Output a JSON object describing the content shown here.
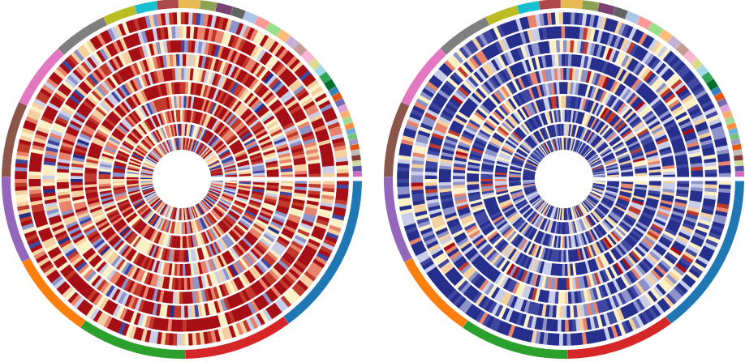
{
  "chart_data": [
    {
      "type": "heatmap",
      "layout": "circular",
      "title": "",
      "rings": 10,
      "colormap": [
        "#a50f15",
        "#c0392b",
        "#e7836b",
        "#f4cfa0",
        "#fcf0c6",
        "#c9cde8",
        "#8d92c8",
        "#3f47a0",
        "#262f8c"
      ],
      "dominant_color": "#a50f15",
      "ring_bias": [
        0.25,
        0.15,
        0.3,
        0.2,
        0.35,
        0.15,
        0.3,
        0.2,
        0.35,
        0.4
      ],
      "cells_per_ring": [
        260,
        250,
        240,
        230,
        220,
        210,
        200,
        190,
        180,
        200
      ]
    },
    {
      "type": "heatmap",
      "layout": "circular",
      "title": "",
      "rings": 10,
      "colormap": [
        "#a50f15",
        "#c0392b",
        "#e7836b",
        "#f4cfa0",
        "#fcf0c6",
        "#c9cde8",
        "#8d92c8",
        "#3f47a0",
        "#262f8c"
      ],
      "dominant_color": "#262f8c",
      "ring_bias": [
        0.8,
        0.75,
        0.7,
        0.85,
        0.65,
        0.8,
        0.7,
        0.75,
        0.8,
        0.85
      ],
      "cells_per_ring": [
        260,
        250,
        240,
        230,
        220,
        210,
        200,
        190,
        180,
        200
      ]
    }
  ],
  "categories": [
    {
      "color": "#1f77b4",
      "fraction": 0.15
    },
    {
      "color": "#d62728",
      "fraction": 0.1
    },
    {
      "color": "#2ca02c",
      "fraction": 0.1
    },
    {
      "color": "#ff7f0e",
      "fraction": 0.08
    },
    {
      "color": "#9467bd",
      "fraction": 0.08
    },
    {
      "color": "#8c564b",
      "fraction": 0.07
    },
    {
      "color": "#e377c2",
      "fraction": 0.06
    },
    {
      "color": "#7f7f7f",
      "fraction": 0.05
    },
    {
      "color": "#bcbd22",
      "fraction": 0.03
    },
    {
      "color": "#17becf",
      "fraction": 0.02
    },
    {
      "color": "#ad494a",
      "fraction": 0.02
    },
    {
      "color": "#e7ba52",
      "fraction": 0.02
    },
    {
      "color": "#8ca252",
      "fraction": 0.015
    },
    {
      "color": "#7b4173",
      "fraction": 0.015
    },
    {
      "color": "#636363",
      "fraction": 0.012
    },
    {
      "color": "#aec7e8",
      "fraction": 0.012
    },
    {
      "color": "#ff9896",
      "fraction": 0.012
    },
    {
      "color": "#98df8a",
      "fraction": 0.012
    },
    {
      "color": "#ffbb78",
      "fraction": 0.01
    },
    {
      "color": "#c5b0d5",
      "fraction": 0.01
    },
    {
      "color": "#c49c94",
      "fraction": 0.01
    },
    {
      "color": "#f7b6d2",
      "fraction": 0.01
    },
    {
      "color": "#dbdb8d",
      "fraction": 0.008
    },
    {
      "color": "#9edae5",
      "fraction": 0.008
    },
    {
      "color": "#31a354",
      "fraction": 0.008
    },
    {
      "color": "#006d2c",
      "fraction": 0.008
    },
    {
      "color": "#3182bd",
      "fraction": 0.006
    },
    {
      "color": "#e6550d",
      "fraction": 0.006
    },
    {
      "color": "#756bb1",
      "fraction": 0.006
    },
    {
      "color": "#de9ed6",
      "fraction": 0.006
    },
    {
      "color": "#fdae6b",
      "fraction": 0.006
    },
    {
      "color": "#a1d99b",
      "fraction": 0.006
    },
    {
      "color": "#fd8d3c",
      "fraction": 0.005
    },
    {
      "color": "#6baed6",
      "fraction": 0.005
    },
    {
      "color": "#74c476",
      "fraction": 0.005
    },
    {
      "color": "#9e9ac8",
      "fraction": 0.005
    },
    {
      "color": "#e6550d",
      "fraction": 0.005
    },
    {
      "color": "#bdbdbd",
      "fraction": 0.005
    },
    {
      "color": "#843c39",
      "fraction": 0.005
    },
    {
      "color": "#cedb9c",
      "fraction": 0.005
    },
    {
      "color": "#5254a3",
      "fraction": 0.005
    },
    {
      "color": "#ce6dbd",
      "fraction": 0.005
    }
  ]
}
